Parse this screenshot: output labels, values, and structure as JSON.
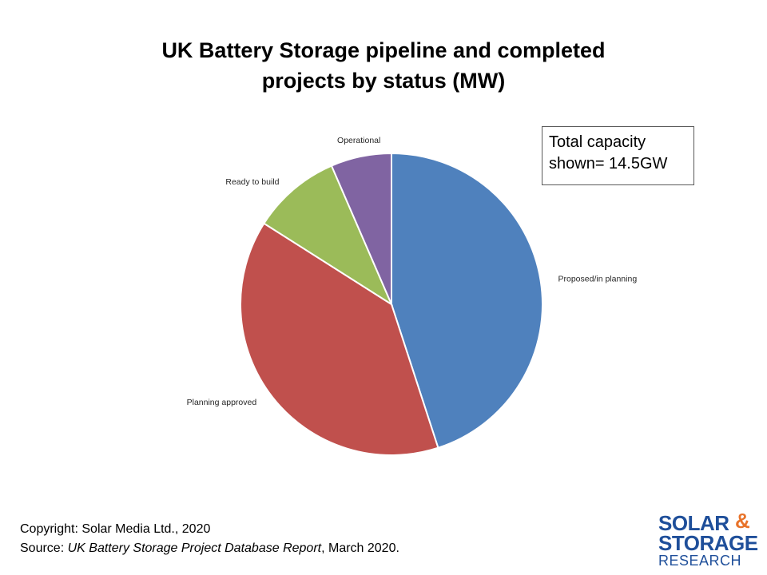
{
  "chart_data": {
    "type": "pie",
    "title_lines": [
      "UK Battery Storage pipeline and completed",
      "projects by status (MW)"
    ],
    "categories": [
      "Proposed/in planning",
      "Planning approved",
      "Ready to build",
      "Operational"
    ],
    "values": [
      45.0,
      39.0,
      9.5,
      6.5
    ],
    "colors": [
      "#4f81bd",
      "#c0504d",
      "#9bbb59",
      "#8064a2"
    ],
    "start_angle_deg": 0,
    "direction": "clockwise"
  },
  "annotation": {
    "lines": [
      "Total capacity",
      "shown= 14.5GW"
    ]
  },
  "footer": {
    "copyright": "Copyright: Solar Media Ltd., 2020",
    "source_prefix": "Source: ",
    "source_title": "UK Battery Storage Project Database Report",
    "source_suffix": ", March 2020."
  },
  "logo": {
    "word1": "SOLAR",
    "amp": "&",
    "word2": "STORAGE",
    "word3": "RESEARCH"
  }
}
